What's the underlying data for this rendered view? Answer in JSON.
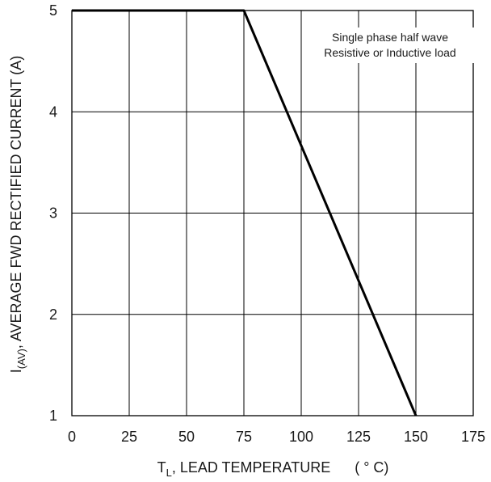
{
  "chart_data": {
    "type": "line",
    "xlabel": {
      "main": "T",
      "sub": "L",
      "rest": ", LEAD TEMPERATURE",
      "unit": "( ° C)"
    },
    "ylabel": {
      "main": "I",
      "sub": "(AV)",
      "rest": ", AVERAGE FWD RECTIFIED CURRENT (A)"
    },
    "annotation": [
      "Single phase half wave",
      "Resistive or Inductive load"
    ],
    "x_ticks": [
      "0",
      "25",
      "50",
      "75",
      "100",
      "125",
      "150",
      "175"
    ],
    "y_ticks": [
      "1",
      "2",
      "3",
      "4",
      "5"
    ],
    "xlim": [
      0,
      175
    ],
    "ylim": [
      1,
      5
    ],
    "grid": true,
    "series": [
      {
        "x": [
          0,
          75,
          150
        ],
        "y": [
          5,
          5,
          1
        ]
      }
    ],
    "colors": {
      "line": "#000000",
      "grid": "#000000"
    }
  }
}
